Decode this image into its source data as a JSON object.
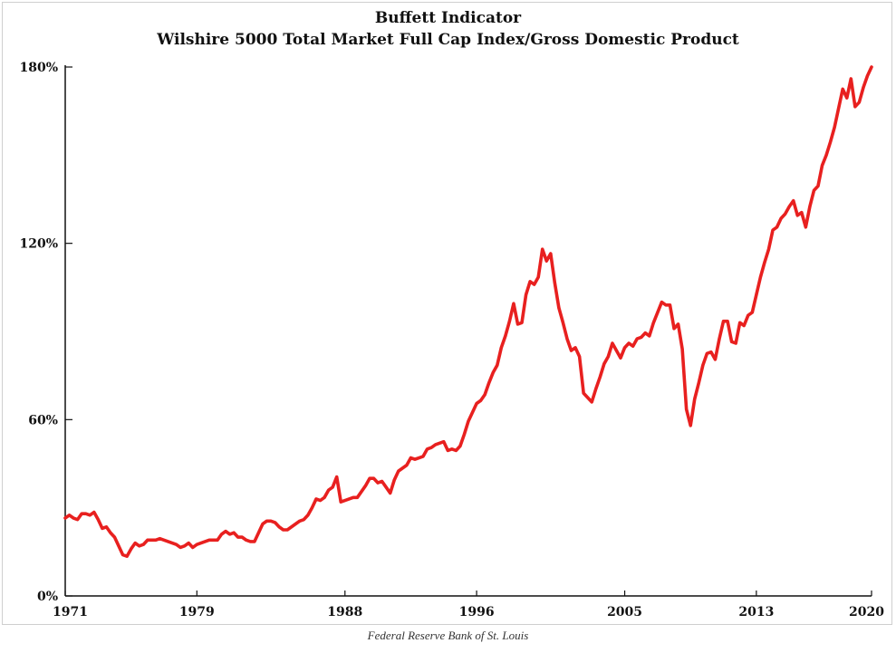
{
  "chart_data": {
    "type": "line",
    "title": "Buffett Indicator",
    "subtitle": "Wilshire 5000 Total Market Full Cap Index/Gross Domestic Product",
    "xlabel": "",
    "ylabel": "",
    "xlim": [
      1971,
      2020
    ],
    "ylim": [
      0,
      180
    ],
    "y_ticks": [
      0,
      60,
      120,
      180
    ],
    "y_tick_labels": [
      "0%",
      "60%",
      "120%",
      "180%"
    ],
    "x_ticks": [
      1971,
      1979,
      1988,
      1996,
      2005,
      2013,
      2020
    ],
    "x_tick_labels": [
      "1971",
      "1979",
      "1988",
      "1996",
      "2005",
      "2013",
      "2020"
    ],
    "grid": false,
    "series": [
      {
        "name": "Buffett Indicator",
        "color": "#e8201f",
        "x": [
          1971.0,
          1971.25,
          1971.5,
          1971.75,
          1972.0,
          1972.25,
          1972.5,
          1972.75,
          1973.0,
          1973.25,
          1973.5,
          1973.75,
          1974.0,
          1974.25,
          1974.5,
          1974.75,
          1975.0,
          1975.25,
          1975.5,
          1975.75,
          1976.0,
          1976.25,
          1976.5,
          1976.75,
          1977.0,
          1977.25,
          1977.5,
          1977.75,
          1978.0,
          1978.25,
          1978.5,
          1978.75,
          1979.0,
          1979.25,
          1979.5,
          1979.75,
          1980.0,
          1980.25,
          1980.5,
          1980.75,
          1981.0,
          1981.25,
          1981.5,
          1981.75,
          1982.0,
          1982.25,
          1982.5,
          1982.75,
          1983.0,
          1983.25,
          1983.5,
          1983.75,
          1984.0,
          1984.25,
          1984.5,
          1984.75,
          1985.0,
          1985.25,
          1985.5,
          1985.75,
          1986.0,
          1986.25,
          1986.5,
          1986.75,
          1987.0,
          1987.25,
          1987.5,
          1987.75,
          1988.0,
          1988.25,
          1988.5,
          1988.75,
          1989.0,
          1989.25,
          1989.5,
          1989.75,
          1990.0,
          1990.25,
          1990.5,
          1990.75,
          1991.0,
          1991.25,
          1991.5,
          1991.75,
          1992.0,
          1992.25,
          1992.5,
          1992.75,
          1993.0,
          1993.25,
          1993.5,
          1993.75,
          1994.0,
          1994.25,
          1994.5,
          1994.75,
          1995.0,
          1995.25,
          1995.5,
          1995.75,
          1996.0,
          1996.25,
          1996.5,
          1996.75,
          1997.0,
          1997.25,
          1997.5,
          1997.75,
          1998.0,
          1998.25,
          1998.5,
          1998.75,
          1999.0,
          1999.25,
          1999.5,
          1999.75,
          2000.0,
          2000.25,
          2000.5,
          2000.75,
          2001.0,
          2001.25,
          2001.5,
          2001.75,
          2002.0,
          2002.25,
          2002.5,
          2002.75,
          2003.0,
          2003.25,
          2003.5,
          2003.75,
          2004.0,
          2004.25,
          2004.5,
          2004.75,
          2005.0,
          2005.25,
          2005.5,
          2005.75,
          2006.0,
          2006.25,
          2006.5,
          2006.75,
          2007.0,
          2007.25,
          2007.5,
          2007.75,
          2008.0,
          2008.25,
          2008.5,
          2008.75,
          2009.0,
          2009.25,
          2009.5,
          2009.75,
          2010.0,
          2010.25,
          2010.5,
          2010.75,
          2011.0,
          2011.25,
          2011.5,
          2011.75,
          2012.0,
          2012.25,
          2012.5,
          2012.75,
          2013.0,
          2013.25,
          2013.5,
          2013.75,
          2014.0,
          2014.25,
          2014.5,
          2014.75,
          2015.0,
          2015.25,
          2015.5,
          2015.75,
          2016.0,
          2016.25,
          2016.5,
          2016.75,
          2017.0,
          2017.25,
          2017.5,
          2017.75,
          2018.0,
          2018.25,
          2018.5,
          2018.75,
          2019.0,
          2019.25,
          2019.5,
          2019.75,
          2020.0
        ],
        "values": [
          26.5,
          27.5,
          26.5,
          26.0,
          28.0,
          28.0,
          27.5,
          28.5,
          26.0,
          23.0,
          23.5,
          21.5,
          20.0,
          17.0,
          14.0,
          13.5,
          16.0,
          18.0,
          17.0,
          17.5,
          19.0,
          19.0,
          19.0,
          19.5,
          19.0,
          18.5,
          18.0,
          17.5,
          16.5,
          17.0,
          18.0,
          16.5,
          17.5,
          18.0,
          18.5,
          19.0,
          19.0,
          19.0,
          21.0,
          22.0,
          21.0,
          21.5,
          20.0,
          20.0,
          19.0,
          18.5,
          18.5,
          21.5,
          24.5,
          25.5,
          25.5,
          25.0,
          23.5,
          22.5,
          22.5,
          23.5,
          24.5,
          25.5,
          26.0,
          27.5,
          30.0,
          33.0,
          32.5,
          33.5,
          36.0,
          37.0,
          40.5,
          32.0,
          32.5,
          33.0,
          33.5,
          33.5,
          35.5,
          37.5,
          40.0,
          40.0,
          38.5,
          39.0,
          37.0,
          35.0,
          39.5,
          42.5,
          43.5,
          44.5,
          47.0,
          46.5,
          47.0,
          47.5,
          50.0,
          50.5,
          51.5,
          52.0,
          52.5,
          49.5,
          50.0,
          49.5,
          51.0,
          55.0,
          59.5,
          62.5,
          65.5,
          66.5,
          68.5,
          72.5,
          76.0,
          78.5,
          84.5,
          88.5,
          93.5,
          99.5,
          92.5,
          93.0,
          102.5,
          107.0,
          106.0,
          108.5,
          118.0,
          114.0,
          116.5,
          106.5,
          98.0,
          93.0,
          87.5,
          83.5,
          84.5,
          81.5,
          69.0,
          67.5,
          66.0,
          70.5,
          74.5,
          79.0,
          81.5,
          86.0,
          83.5,
          81.0,
          84.5,
          86.0,
          85.0,
          87.5,
          88.0,
          89.5,
          88.5,
          93.0,
          96.5,
          100.0,
          99.0,
          99.0,
          91.0,
          92.5,
          84.0,
          63.5,
          58.0,
          67.0,
          72.5,
          78.5,
          82.5,
          83.0,
          80.5,
          87.5,
          93.5,
          93.5,
          86.5,
          86.0,
          93.0,
          92.0,
          95.5,
          96.5,
          102.5,
          108.5,
          113.5,
          118.0,
          124.5,
          125.5,
          128.5,
          130.0,
          132.5,
          134.5,
          129.5,
          130.5,
          125.5,
          132.5,
          138.0,
          139.5,
          146.5,
          150.0,
          154.5,
          159.5,
          166.0,
          172.5,
          169.5,
          176.0,
          166.5,
          168.0,
          173.0,
          177.0,
          180.0
        ]
      }
    ],
    "source": "Federal Reserve Bank of St. Louis"
  }
}
